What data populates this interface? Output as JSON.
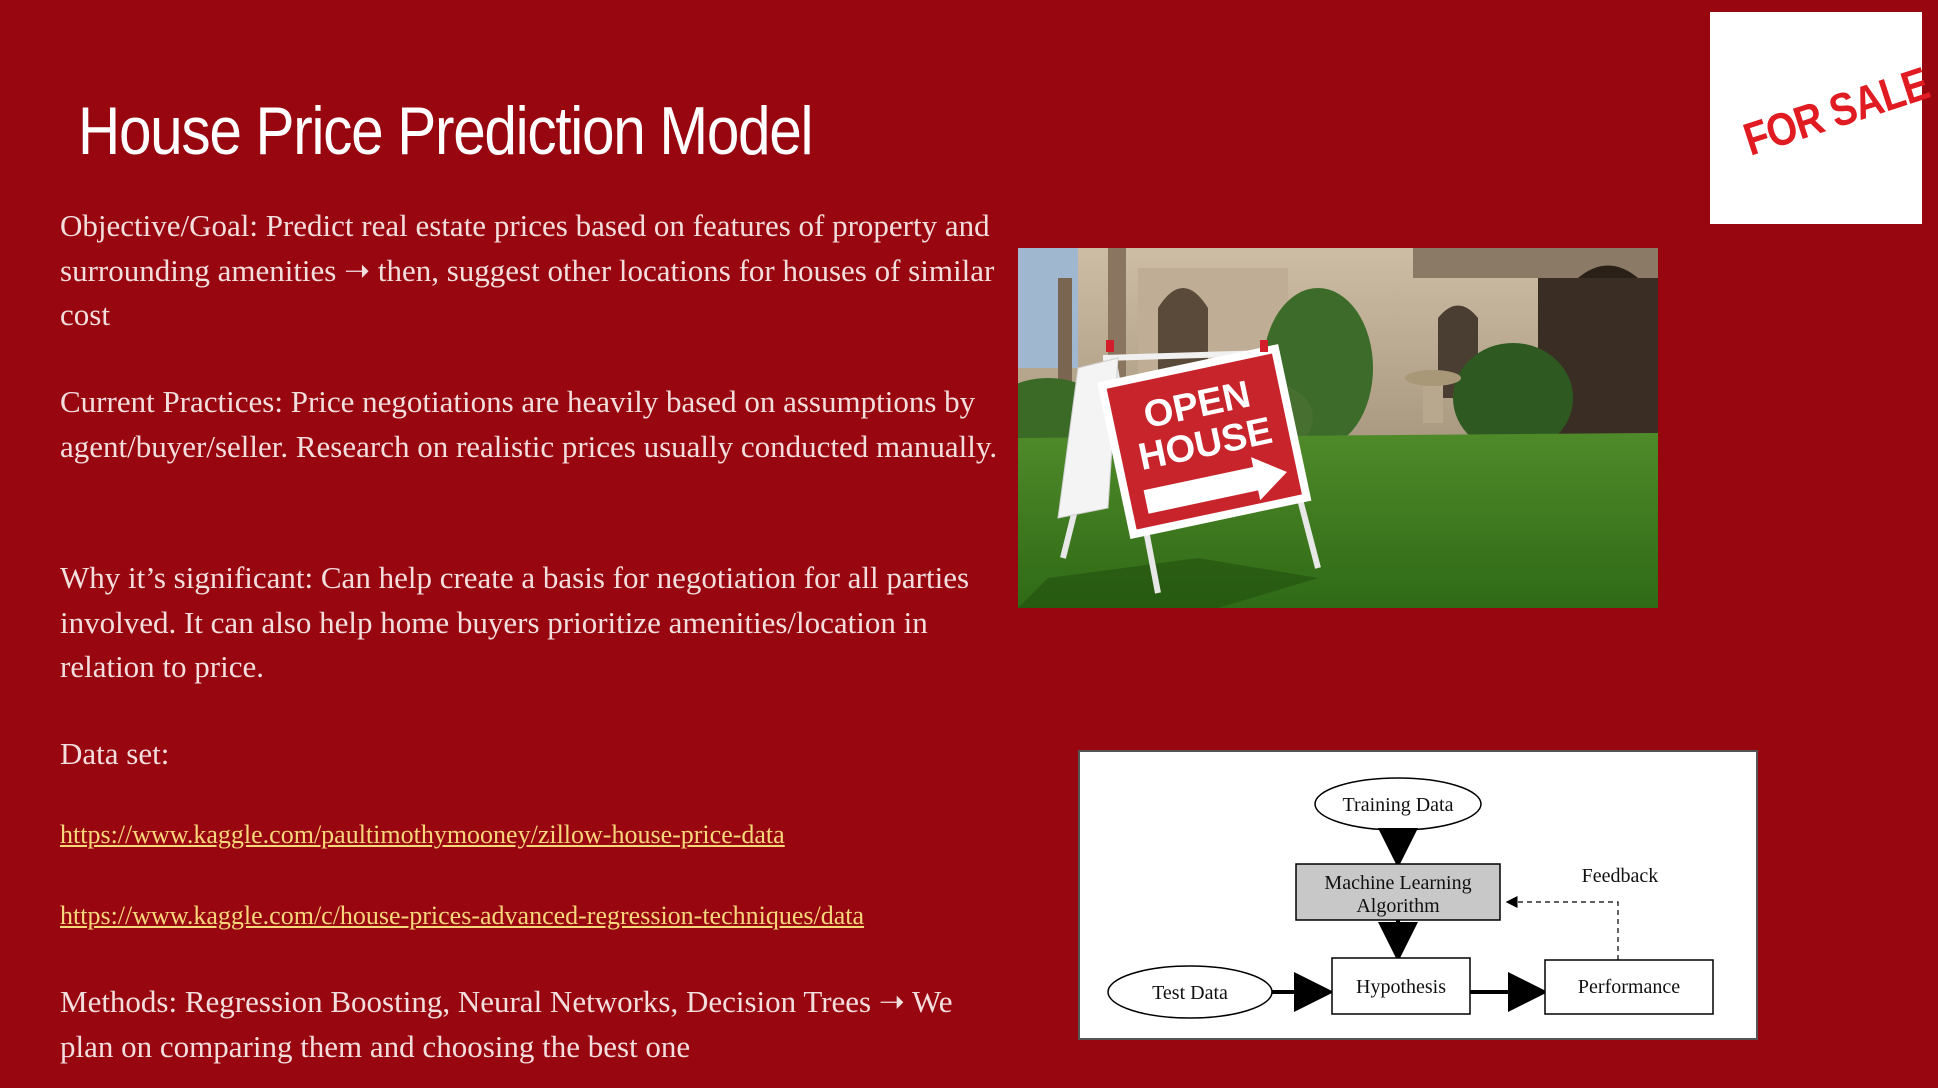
{
  "slide": {
    "title": "House Price Prediction Model",
    "objective": "Objective/Goal:  Predict real estate prices based on features of property and surrounding amenities ➝ then, suggest other locations for houses of similar cost",
    "current_practices": "Current Practices: Price negotiations are heavily based on assumptions by agent/buyer/seller. Research on realistic prices usually conducted manually.",
    "significance": "Why it’s significant: Can help create a basis for negotiation for all parties involved. It can also help home buyers prioritize amenities/location in relation to price.",
    "dataset_label": "Data set:",
    "links": [
      "https://www.kaggle.com/paultimothymooney/zillow-house-price-data",
      "https://www.kaggle.com/c/house-prices-advanced-regression-techniques/data"
    ],
    "methods": "Methods: Regression Boosting, Neural Networks, Decision Trees ➝ We plan on comparing them and choosing the best one"
  },
  "for_sale_image": {
    "text": "FOR SALE",
    "color": "#e01b22"
  },
  "open_house_photo": {
    "sign_text_line1": "OPEN",
    "sign_text_line2": "HOUSE"
  },
  "diagram": {
    "training_data": "Training Data",
    "ml_line1": "Machine Learning",
    "ml_line2": "Algorithm",
    "feedback": "Feedback",
    "test_data": "Test Data",
    "hypothesis": "Hypothesis",
    "performance": "Performance"
  },
  "colors": {
    "background": "#980610",
    "link": "#f6d77a",
    "body_text": "#f3dede"
  }
}
